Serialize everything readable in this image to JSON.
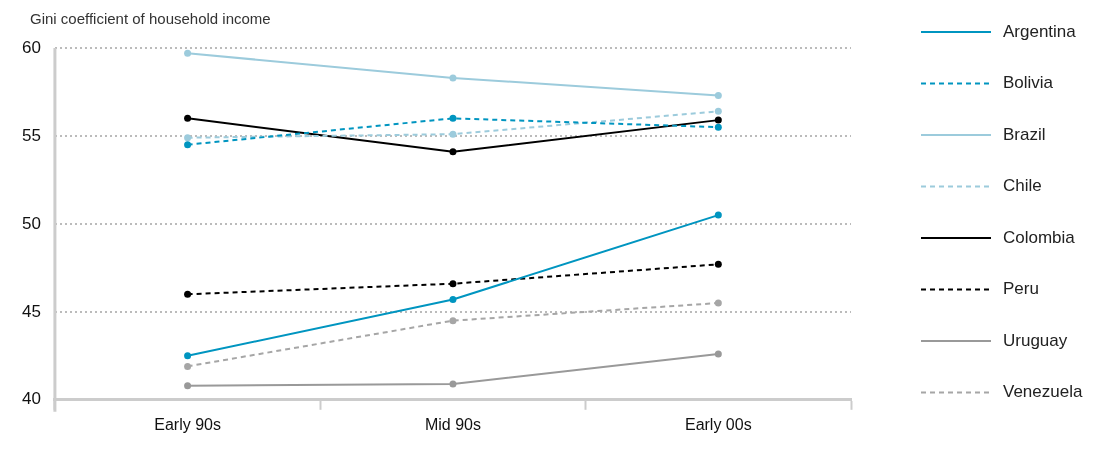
{
  "chart_data": {
    "type": "line",
    "ylabel": "Gini coefficient of household income",
    "categories": [
      "Early 90s",
      "Mid 90s",
      "Early 00s"
    ],
    "ylim": [
      40,
      60
    ],
    "yticks": [
      40,
      45,
      50,
      55,
      60
    ],
    "grid": "y",
    "legend": "right",
    "marker": "circle",
    "series": [
      {
        "name": "Argentina",
        "color": "#0095c0",
        "line_style": "solid",
        "values": [
          42.5,
          45.7,
          50.5
        ]
      },
      {
        "name": "Bolivia",
        "color": "#0095c0",
        "line_style": "dashed",
        "values": [
          54.5,
          56.0,
          55.5
        ]
      },
      {
        "name": "Brazil",
        "color": "#9ccbdc",
        "line_style": "solid",
        "values": [
          59.7,
          58.3,
          57.3
        ]
      },
      {
        "name": "Chile",
        "color": "#9ccbdc",
        "line_style": "dashed",
        "values": [
          54.9,
          55.1,
          56.4
        ]
      },
      {
        "name": "Colombia",
        "color": "#000000",
        "line_style": "solid",
        "values": [
          56.0,
          54.1,
          55.9
        ]
      },
      {
        "name": "Peru",
        "color": "#000000",
        "line_style": "dashed",
        "values": [
          46.0,
          46.6,
          47.7
        ]
      },
      {
        "name": "Uruguay",
        "color": "#999999",
        "line_style": "solid",
        "values": [
          40.8,
          40.9,
          42.6
        ]
      },
      {
        "name": "Venezuela",
        "color": "#a6a6a6",
        "line_style": "dashed",
        "values": [
          41.9,
          44.5,
          45.5
        ]
      }
    ]
  }
}
